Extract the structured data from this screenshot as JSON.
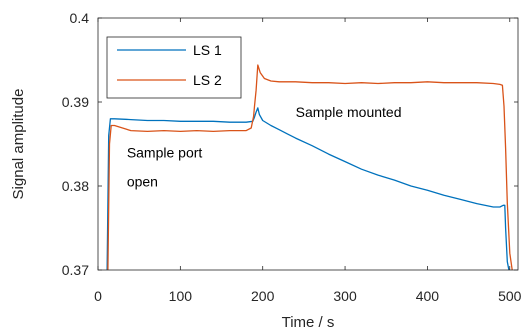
{
  "chart_data": {
    "type": "line",
    "title": "",
    "xlabel": "Time / s",
    "ylabel": "Signal amplitude",
    "xlim": [
      0,
      510
    ],
    "ylim": [
      0.37,
      0.4
    ],
    "xticks": [
      0,
      100,
      200,
      300,
      400,
      500
    ],
    "yticks": [
      0.37,
      0.38,
      0.39,
      0.4
    ],
    "grid": false,
    "legend_position": "top-left",
    "annotations": [
      {
        "lines": [
          "Sample port",
          "open"
        ],
        "x": 35,
        "y": 0.3834
      },
      {
        "lines": [
          "Sample mounted"
        ],
        "x": 240,
        "y": 0.3882
      }
    ],
    "series": [
      {
        "name": "LS 1",
        "color": "#0072BD",
        "x": [
          11,
          13,
          15,
          20,
          40,
          60,
          80,
          100,
          120,
          140,
          160,
          180,
          188,
          190,
          192,
          194,
          196,
          200,
          210,
          220,
          230,
          240,
          260,
          280,
          300,
          320,
          340,
          360,
          380,
          400,
          420,
          440,
          460,
          480,
          488,
          492,
          494,
          495,
          497,
          499
        ],
        "y": [
          0.37,
          0.386,
          0.388,
          0.388,
          0.3879,
          0.3878,
          0.3878,
          0.3877,
          0.3877,
          0.3877,
          0.3876,
          0.3876,
          0.3877,
          0.3882,
          0.3888,
          0.3893,
          0.3885,
          0.3878,
          0.3872,
          0.3867,
          0.3862,
          0.3857,
          0.3848,
          0.3838,
          0.3829,
          0.382,
          0.3813,
          0.3807,
          0.38,
          0.3795,
          0.3789,
          0.3784,
          0.3779,
          0.3775,
          0.3775,
          0.3777,
          0.3777,
          0.375,
          0.371,
          0.37
        ]
      },
      {
        "name": "LS 2",
        "color": "#D95319",
        "x": [
          12,
          14,
          16,
          20,
          40,
          60,
          80,
          100,
          120,
          140,
          160,
          180,
          186,
          189,
          190,
          192,
          194,
          197,
          202,
          210,
          220,
          240,
          260,
          280,
          300,
          320,
          340,
          360,
          380,
          400,
          420,
          440,
          460,
          480,
          488,
          491,
          493,
          495,
          497,
          500,
          503
        ],
        "y": [
          0.37,
          0.385,
          0.3872,
          0.3872,
          0.3866,
          0.3865,
          0.3866,
          0.3865,
          0.3866,
          0.3865,
          0.3866,
          0.3866,
          0.3869,
          0.3883,
          0.3895,
          0.3914,
          0.3944,
          0.3935,
          0.3928,
          0.3925,
          0.3924,
          0.3924,
          0.3923,
          0.3923,
          0.3922,
          0.3923,
          0.3922,
          0.3923,
          0.3923,
          0.3924,
          0.3923,
          0.3923,
          0.3923,
          0.3922,
          0.3921,
          0.392,
          0.3895,
          0.3845,
          0.378,
          0.372,
          0.37
        ]
      }
    ]
  }
}
